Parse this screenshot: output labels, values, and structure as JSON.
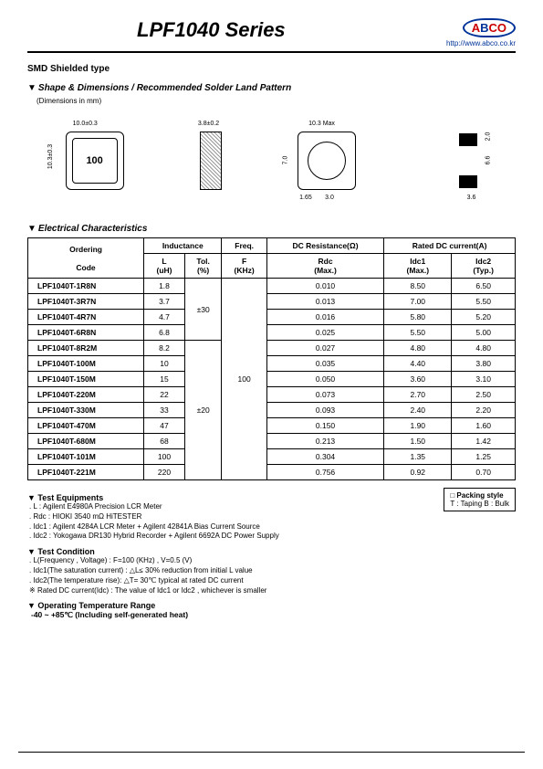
{
  "header": {
    "title": "LPF1040 Series",
    "logo_a": "A",
    "logo_b": "B",
    "logo_c": "CO",
    "url": "http://www.abco.co.kr"
  },
  "smd_type": "SMD Shielded type",
  "sections": {
    "shape": "Shape & Dimensions / Recommended Solder Land Pattern",
    "elec": "Electrical Characteristics"
  },
  "dims_note": "(Dimensions in mm)",
  "diagram_dims": {
    "top_w": "10.0±0.3",
    "top_h": "10.3±0.3",
    "side_w": "3.8±0.2",
    "bot_w": "10.3 Max",
    "bot_h": "7.0",
    "bot_g1": "1.65",
    "bot_g2": "3.0",
    "pad_h": "2.0",
    "pad_gap": "6.6",
    "pad_w": "3.6",
    "part_mark": "100"
  },
  "table": {
    "head": {
      "ordering": "Ordering",
      "inductance": "Inductance",
      "freq": "Freq.",
      "dcr": "DC Resistance(Ω)",
      "rated": "Rated DC current(A)",
      "code": "Code",
      "l": "L\n(uH)",
      "tol": "Tol.\n(%)",
      "f": "F\n(KHz)",
      "rdc": "Rdc\n(Max.)",
      "idc1": "Idc1\n(Max.)",
      "idc2": "Idc2\n(Typ.)"
    },
    "tol_30": "±30",
    "tol_20": "±20",
    "freq_val": "100",
    "rows": [
      {
        "code": "LPF1040T-1R8N",
        "l": "1.8",
        "rdc": "0.010",
        "i1": "8.50",
        "i2": "6.50",
        "grp": "a"
      },
      {
        "code": "LPF1040T-3R7N",
        "l": "3.7",
        "rdc": "0.013",
        "i1": "7.00",
        "i2": "5.50",
        "grp": "a"
      },
      {
        "code": "LPF1040T-4R7N",
        "l": "4.7",
        "rdc": "0.016",
        "i1": "5.80",
        "i2": "5.20",
        "grp": "a"
      },
      {
        "code": "LPF1040T-6R8N",
        "l": "6.8",
        "rdc": "0.025",
        "i1": "5.50",
        "i2": "5.00",
        "grp": "a"
      },
      {
        "code": "LPF1040T-8R2M",
        "l": "8.2",
        "rdc": "0.027",
        "i1": "4.80",
        "i2": "4.80",
        "grp": "b"
      },
      {
        "code": "LPF1040T-100M",
        "l": "10",
        "rdc": "0.035",
        "i1": "4.40",
        "i2": "3.80",
        "grp": "b"
      },
      {
        "code": "LPF1040T-150M",
        "l": "15",
        "rdc": "0.050",
        "i1": "3.60",
        "i2": "3.10",
        "grp": "b"
      },
      {
        "code": "LPF1040T-220M",
        "l": "22",
        "rdc": "0.073",
        "i1": "2.70",
        "i2": "2.50",
        "grp": "b"
      },
      {
        "code": "LPF1040T-330M",
        "l": "33",
        "rdc": "0.093",
        "i1": "2.40",
        "i2": "2.20",
        "grp": "b"
      },
      {
        "code": "LPF1040T-470M",
        "l": "47",
        "rdc": "0.150",
        "i1": "1.90",
        "i2": "1.60",
        "grp": "b"
      },
      {
        "code": "LPF1040T-680M",
        "l": "68",
        "rdc": "0.213",
        "i1": "1.50",
        "i2": "1.42",
        "grp": "b"
      },
      {
        "code": "LPF1040T-101M",
        "l": "100",
        "rdc": "0.304",
        "i1": "1.35",
        "i2": "1.25",
        "grp": "b"
      },
      {
        "code": "LPF1040T-221M",
        "l": "220",
        "rdc": "0.756",
        "i1": "0.92",
        "i2": "0.70",
        "grp": "b"
      }
    ]
  },
  "notes": {
    "equip_hdr": "Test Equipments",
    "equip": [
      "L : Agilent E4980A Precision LCR Meter",
      "Rdc : HIOKI 3540 mΩ HiTESTER",
      "Idc1 : Agilent 4284A LCR Meter + Agilent 42841A Bias Current Source",
      "Idc2 : Yokogawa DR130 Hybrid Recorder + Agilent 6692A DC Power Supply"
    ],
    "cond_hdr": "Test Condition",
    "cond": [
      "L(Frequency , Voltage) : F=100 (KHz) , V=0.5 (V)",
      "Idc1(The saturation current) : △L≤ 30% reduction from  initial L value",
      "Idc2(The temperature rise): △T= 30℃ typical at rated DC current"
    ],
    "cond_star": "Rated DC current(Idc) : The value of Idc1 or Idc2 , whichever is smaller",
    "temp_hdr": "Operating Temperature Range",
    "temp": "-40 ~ +85℃ (Including self-generated heat)",
    "pack_hdr": "□ Packing style",
    "pack": "T : Taping     B : Bulk"
  }
}
